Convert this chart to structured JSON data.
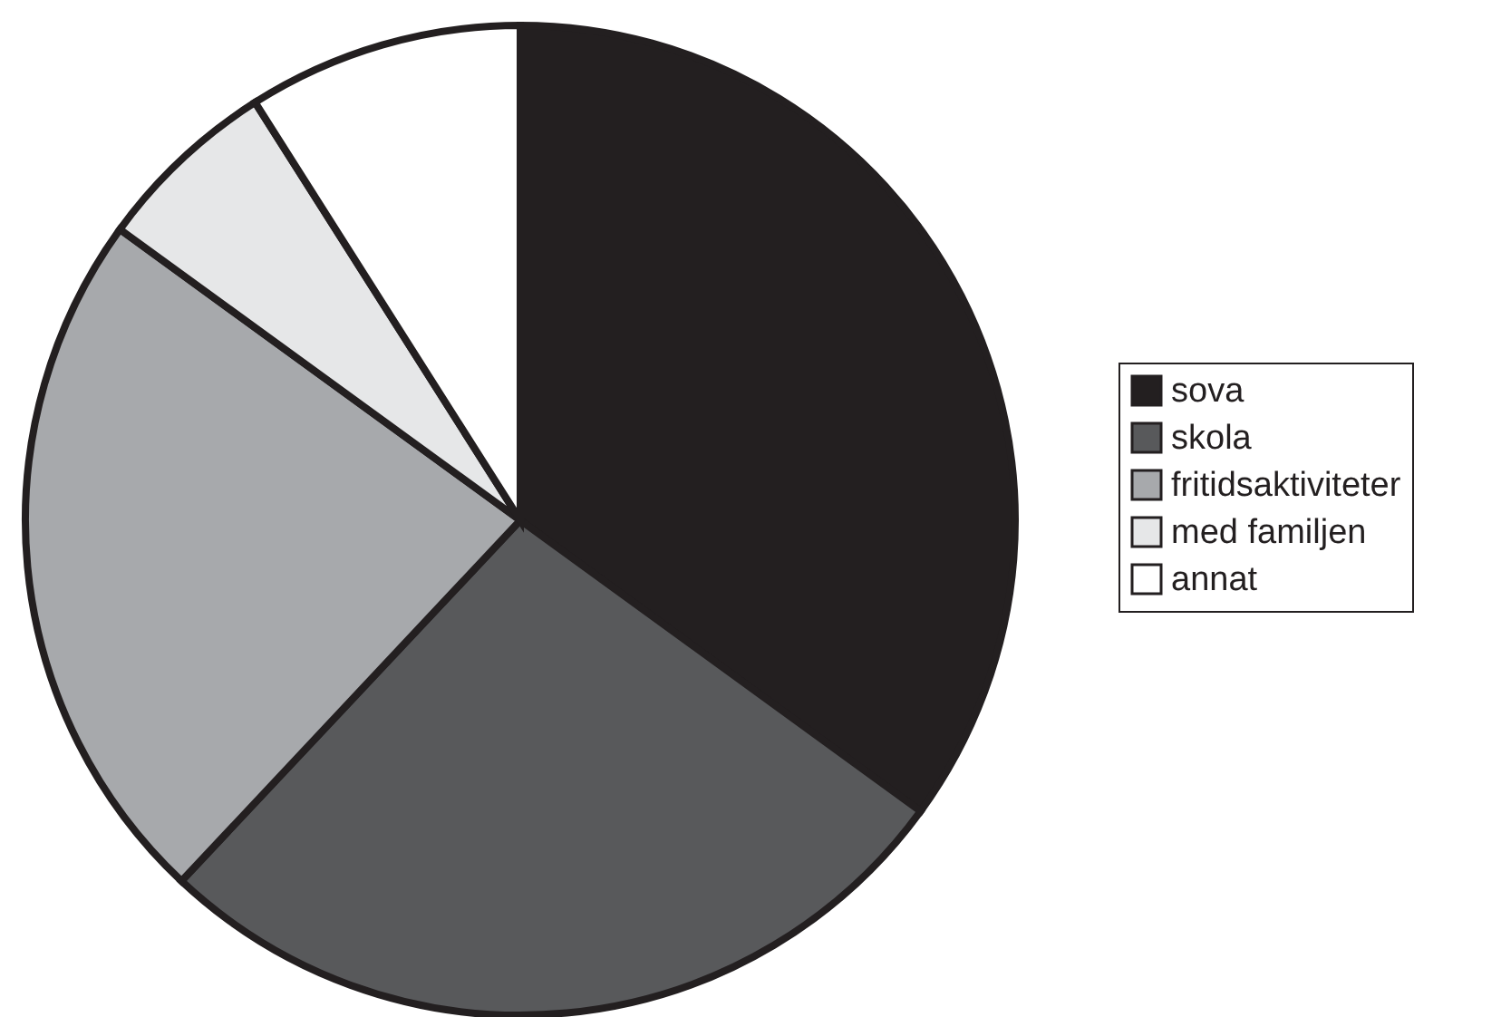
{
  "chart_data": {
    "type": "pie",
    "categories": [
      "sova",
      "skola",
      "fritidsaktiviteter",
      "med familjen",
      "annat"
    ],
    "values": [
      35,
      27,
      23,
      6,
      9
    ],
    "colors": [
      "#231f20",
      "#58595b",
      "#a7a9ac",
      "#e6e7e8",
      "#ffffff"
    ],
    "legend": "right"
  }
}
